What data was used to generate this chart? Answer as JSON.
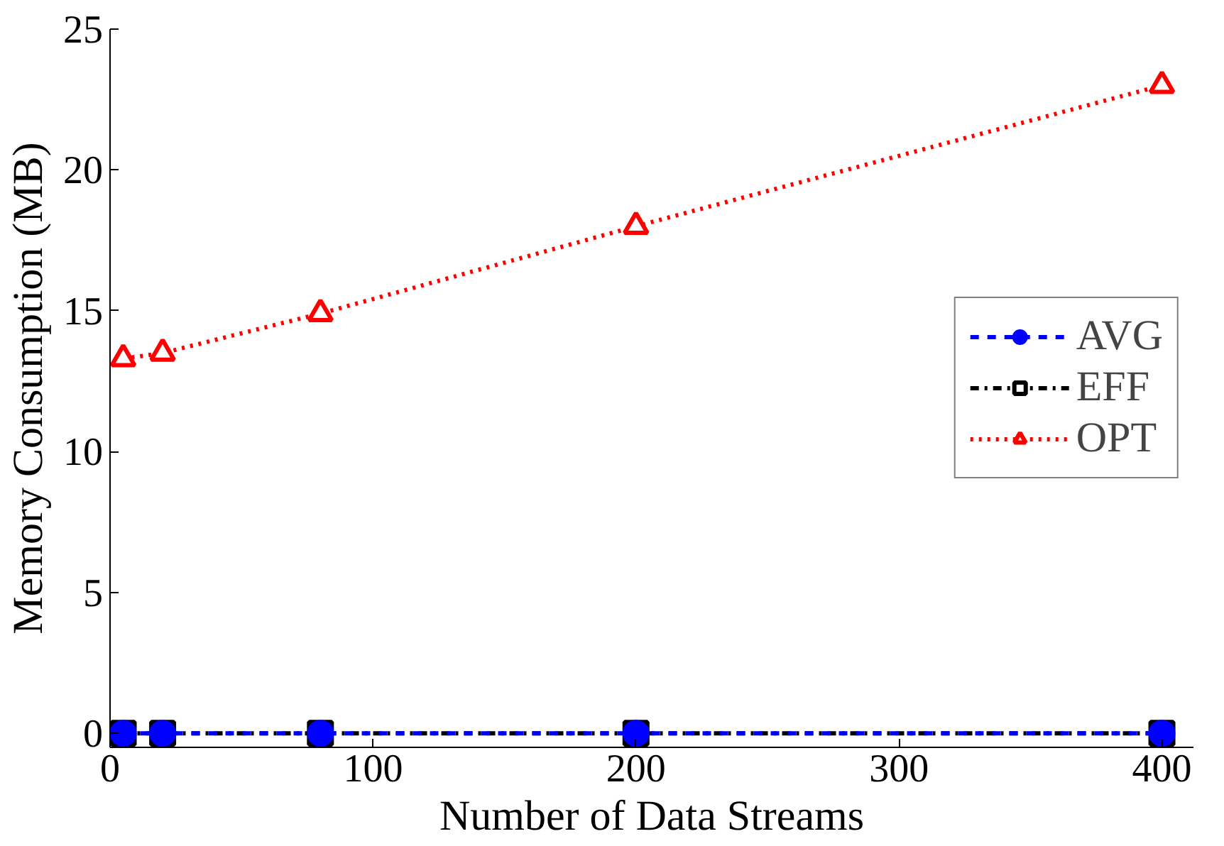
{
  "chart_data": {
    "type": "line",
    "xlabel": "Number of Data Streams",
    "ylabel": "Memory Consumption (MB)",
    "x": [
      5,
      20,
      80,
      200,
      400
    ],
    "series": [
      {
        "name": "AVG",
        "color": "#0000ff",
        "values": [
          0,
          0,
          0,
          0,
          0
        ],
        "marker": "circle",
        "line_style": "dashed"
      },
      {
        "name": "EFF",
        "color": "#000000",
        "values": [
          0,
          0,
          0,
          0,
          0
        ],
        "marker": "square",
        "line_style": "dashdot"
      },
      {
        "name": "OPT",
        "color": "#ff0000",
        "values": [
          13.3,
          13.5,
          14.9,
          18.0,
          23.0
        ],
        "marker": "triangle",
        "line_style": "dotted"
      }
    ],
    "xlim": [
      0,
      412
    ],
    "ylim": [
      -0.5,
      25
    ],
    "xticks": [
      0,
      100,
      200,
      300,
      400
    ],
    "yticks": [
      0,
      5,
      10,
      15,
      20,
      25
    ],
    "grid": false,
    "legend": "right"
  }
}
